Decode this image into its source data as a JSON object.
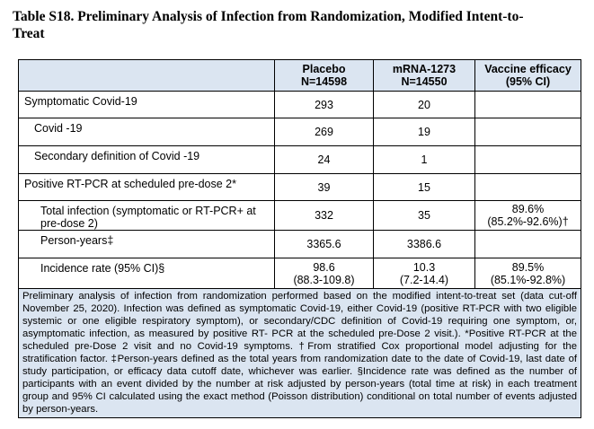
{
  "title": "Table S18. Preliminary Analysis of Infection from Randomization, Modified Intent-to-Treat",
  "table": {
    "columns": [
      {
        "lines": [
          "Placebo",
          "N=14598"
        ]
      },
      {
        "lines": [
          "mRNA-1273",
          "N=14550"
        ]
      },
      {
        "lines": [
          "Vaccine efficacy",
          "(95% CI)"
        ]
      }
    ],
    "rows": [
      {
        "label": "Symptomatic Covid-19",
        "cells": [
          [
            "293"
          ],
          [
            "20"
          ]
        ]
      },
      {
        "label": "Covid -19",
        "cells": [
          [
            "269"
          ],
          [
            "19"
          ]
        ]
      },
      {
        "label": "Secondary definition of Covid -19",
        "cells": [
          [
            "24"
          ],
          [
            "1"
          ]
        ]
      },
      {
        "label": "Positive RT-PCR at scheduled pre-dose 2*",
        "cells": [
          [
            "39"
          ],
          [
            "15"
          ]
        ]
      },
      {
        "label": "Total infection (symptomatic or RT-PCR+ at pre-dose 2)",
        "cells": [
          [
            "332"
          ],
          [
            "35"
          ],
          [
            "89.6%",
            "(85.2%-92.6%)†"
          ]
        ]
      },
      {
        "label": "Person-years‡",
        "cells": [
          [
            "3365.6"
          ],
          [
            "3386.6"
          ]
        ]
      },
      {
        "label": "Incidence rate (95% CI)§",
        "cells": [
          [
            "98.6",
            "(88.3-109.8)"
          ],
          [
            "10.3",
            "(7.2-14.4)"
          ],
          [
            "89.5%",
            "(85.1%-92.8%)"
          ]
        ]
      }
    ],
    "footnote": "Preliminary analysis of infection from randomization performed based on the modified intent-to-treat set (data cut-off November 25, 2020). Infection was defined as symptomatic Covid-19, either Covid-19 (positive RT-PCR with two eligible systemic or one eligible respiratory symptom), or secondary/CDC definition of Covid-19 requiring one symptom, or, asymptomatic infection, as measured by positive RT- PCR at the scheduled pre-Dose 2 visit.). *Positive RT-PCR at the scheduled pre-Dose 2 visit and no Covid-19 symptoms. †From stratified Cox proportional model adjusting for the stratification factor. ‡Person-years defined as the total years from randomization date to the date of Covid-19, last date of study participation, or efficacy data cutoff date, whichever was earlier. §Incidence rate was defined as the number of participants with an event divided by the number at risk adjusted by person-years (total time at risk) in each treatment group and 95% CI calculated using the exact method (Poisson distribution) conditional on total number of events adjusted by person-years."
  }
}
